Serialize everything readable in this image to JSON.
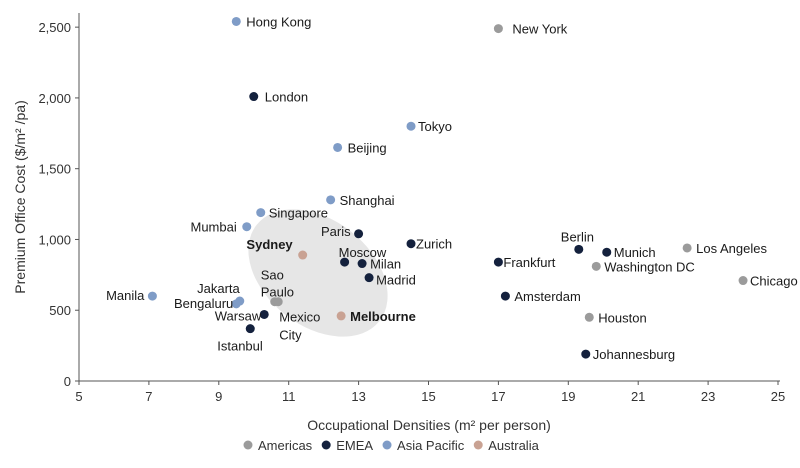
{
  "chart_data": {
    "type": "scatter",
    "xlabel": "Occupational Densities (m² per person)",
    "ylabel": "Premium Office Cost ($/m² /pa)",
    "xlim": [
      5,
      25
    ],
    "ylim": [
      0,
      2600
    ],
    "xticks": [
      "5",
      "7",
      "9",
      "11",
      "13",
      "15",
      "17",
      "19",
      "21",
      "23",
      "25"
    ],
    "yticks": [
      "0",
      "500",
      "1,000",
      "1,500",
      "2,000",
      "2,500"
    ],
    "grid": false,
    "legend_position": "bottom",
    "highlight_ellipse": true,
    "series": [
      {
        "name": "Americas",
        "color": "#9b9b9b",
        "points": [
          {
            "label": "New York",
            "x": 17.0,
            "y": 2490
          },
          {
            "label": "Los Angeles",
            "x": 22.4,
            "y": 940
          },
          {
            "label": "Washington DC",
            "x": 19.8,
            "y": 810
          },
          {
            "label": "Chicago",
            "x": 24.0,
            "y": 710
          },
          {
            "label": "Houston",
            "x": 19.6,
            "y": 450
          },
          {
            "label": "Sao Paulo",
            "x": 10.6,
            "y": 560
          },
          {
            "label": "Mexico City",
            "x": 10.7,
            "y": 560
          }
        ]
      },
      {
        "name": "EMEA",
        "color": "#14213d",
        "points": [
          {
            "label": "London",
            "x": 10.0,
            "y": 2010
          },
          {
            "label": "Paris",
            "x": 13.0,
            "y": 1040
          },
          {
            "label": "Zurich",
            "x": 14.5,
            "y": 970
          },
          {
            "label": "Moscow",
            "x": 12.6,
            "y": 840
          },
          {
            "label": "Milan",
            "x": 13.1,
            "y": 830
          },
          {
            "label": "Madrid",
            "x": 13.3,
            "y": 730
          },
          {
            "label": "Berlin",
            "x": 19.3,
            "y": 930
          },
          {
            "label": "Munich",
            "x": 20.1,
            "y": 910
          },
          {
            "label": "Frankfurt",
            "x": 17.0,
            "y": 840
          },
          {
            "label": "Amsterdam",
            "x": 17.2,
            "y": 600
          },
          {
            "label": "Warsaw",
            "x": 10.3,
            "y": 470
          },
          {
            "label": "Istanbul",
            "x": 9.9,
            "y": 370
          },
          {
            "label": "Johannesburg",
            "x": 19.5,
            "y": 190
          }
        ]
      },
      {
        "name": "Asia Pacific",
        "color": "#7f9cc7",
        "points": [
          {
            "label": "Hong Kong",
            "x": 9.5,
            "y": 2540
          },
          {
            "label": "Tokyo",
            "x": 14.5,
            "y": 1800
          },
          {
            "label": "Beijing",
            "x": 12.4,
            "y": 1650
          },
          {
            "label": "Shanghai",
            "x": 12.2,
            "y": 1280
          },
          {
            "label": "Singapore",
            "x": 10.2,
            "y": 1190
          },
          {
            "label": "Mumbai",
            "x": 9.8,
            "y": 1090
          },
          {
            "label": "Manila",
            "x": 7.1,
            "y": 600
          },
          {
            "label": "Jakarta",
            "x": 9.6,
            "y": 565
          },
          {
            "label": "Bengaluru",
            "x": 9.5,
            "y": 545
          }
        ]
      },
      {
        "name": "Australia",
        "color": "#c9a293",
        "points": [
          {
            "label": "Sydney",
            "x": 11.4,
            "y": 890,
            "bold": true
          },
          {
            "label": "Melbourne",
            "x": 12.5,
            "y": 460,
            "bold": true
          }
        ]
      }
    ]
  }
}
